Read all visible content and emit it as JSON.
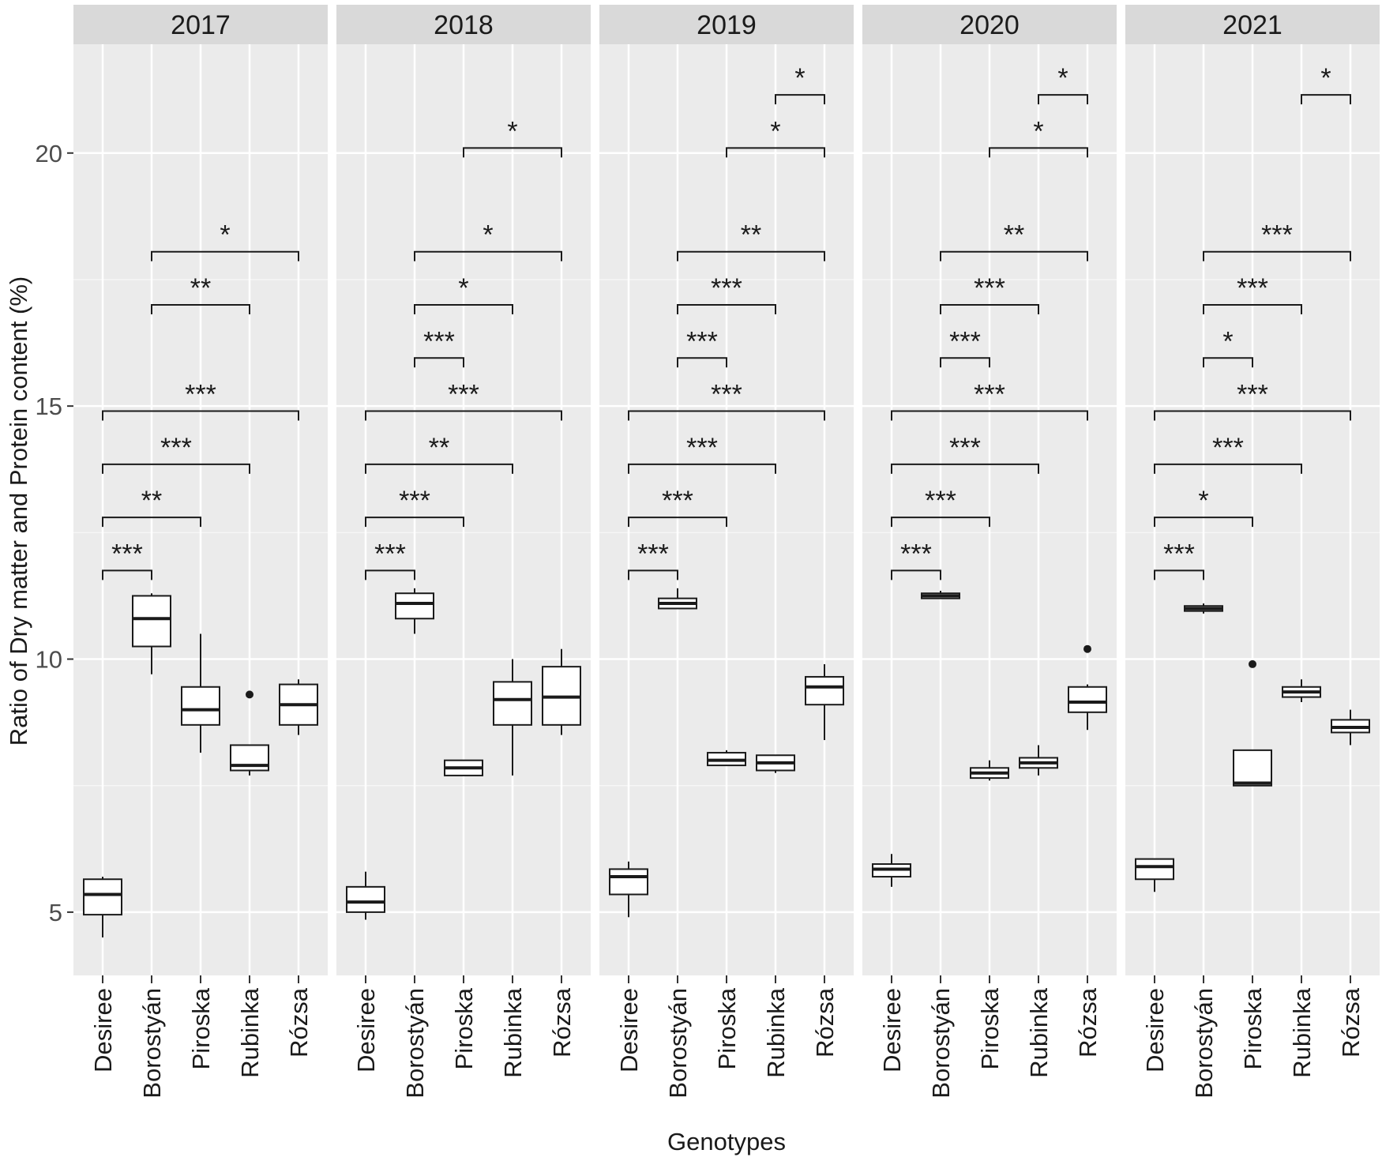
{
  "chart_data": {
    "type": "boxplot",
    "ylabel": "Ratio of Dry matter and Protein content (%)",
    "xlabel": "Genotypes",
    "ylim": [
      3.75,
      22.15
    ],
    "yticks": [
      5,
      10,
      15,
      20
    ],
    "categories": [
      "Desiree",
      "Borostyán",
      "Piroska",
      "Rubinka",
      "Rózsa"
    ],
    "panels": [
      {
        "title": "2017",
        "boxes": [
          {
            "category": "Desiree",
            "whisker_low": 4.5,
            "q1": 4.95,
            "median": 5.35,
            "q3": 5.65,
            "whisker_high": 5.7,
            "outliers": []
          },
          {
            "category": "Borostyán",
            "whisker_low": 9.7,
            "q1": 10.25,
            "median": 10.8,
            "q3": 11.25,
            "whisker_high": 11.3,
            "outliers": []
          },
          {
            "category": "Piroska",
            "whisker_low": 8.15,
            "q1": 8.7,
            "median": 9.0,
            "q3": 9.45,
            "whisker_high": 10.5,
            "outliers": []
          },
          {
            "category": "Rubinka",
            "whisker_low": 7.7,
            "q1": 7.8,
            "median": 7.9,
            "q3": 8.3,
            "whisker_high": 8.3,
            "outliers": [
              9.3
            ]
          },
          {
            "category": "Rózsa",
            "whisker_low": 8.5,
            "q1": 8.7,
            "median": 9.1,
            "q3": 9.5,
            "whisker_high": 9.6,
            "outliers": []
          }
        ],
        "comparisons": [
          {
            "from": 0,
            "to": 1,
            "y": 11.75,
            "label": "***"
          },
          {
            "from": 0,
            "to": 2,
            "y": 12.8,
            "label": "**"
          },
          {
            "from": 0,
            "to": 3,
            "y": 13.85,
            "label": "***"
          },
          {
            "from": 0,
            "to": 4,
            "y": 14.9,
            "label": "***"
          },
          {
            "from": 1,
            "to": 3,
            "y": 17.0,
            "label": "**"
          },
          {
            "from": 1,
            "to": 4,
            "y": 18.05,
            "label": "*"
          }
        ]
      },
      {
        "title": "2018",
        "boxes": [
          {
            "category": "Desiree",
            "whisker_low": 4.85,
            "q1": 5.0,
            "median": 5.2,
            "q3": 5.5,
            "whisker_high": 5.8,
            "outliers": []
          },
          {
            "category": "Borostyán",
            "whisker_low": 10.5,
            "q1": 10.8,
            "median": 11.1,
            "q3": 11.3,
            "whisker_high": 11.4,
            "outliers": []
          },
          {
            "category": "Piroska",
            "whisker_low": 7.7,
            "q1": 7.7,
            "median": 7.85,
            "q3": 8.0,
            "whisker_high": 8.0,
            "outliers": []
          },
          {
            "category": "Rubinka",
            "whisker_low": 7.7,
            "q1": 8.7,
            "median": 9.2,
            "q3": 9.55,
            "whisker_high": 10.0,
            "outliers": []
          },
          {
            "category": "Rózsa",
            "whisker_low": 8.5,
            "q1": 8.7,
            "median": 9.25,
            "q3": 9.85,
            "whisker_high": 10.2,
            "outliers": []
          }
        ],
        "comparisons": [
          {
            "from": 0,
            "to": 1,
            "y": 11.75,
            "label": "***"
          },
          {
            "from": 0,
            "to": 2,
            "y": 12.8,
            "label": "***"
          },
          {
            "from": 0,
            "to": 3,
            "y": 13.85,
            "label": "**"
          },
          {
            "from": 0,
            "to": 4,
            "y": 14.9,
            "label": "***"
          },
          {
            "from": 1,
            "to": 2,
            "y": 15.95,
            "label": "***"
          },
          {
            "from": 1,
            "to": 3,
            "y": 17.0,
            "label": "*"
          },
          {
            "from": 1,
            "to": 4,
            "y": 18.05,
            "label": "*"
          },
          {
            "from": 2,
            "to": 4,
            "y": 20.1,
            "label": "*"
          }
        ]
      },
      {
        "title": "2019",
        "boxes": [
          {
            "category": "Desiree",
            "whisker_low": 4.9,
            "q1": 5.35,
            "median": 5.7,
            "q3": 5.85,
            "whisker_high": 6.0,
            "outliers": []
          },
          {
            "category": "Borostyán",
            "whisker_low": 11.0,
            "q1": 11.0,
            "median": 11.1,
            "q3": 11.2,
            "whisker_high": 11.4,
            "outliers": []
          },
          {
            "category": "Piroska",
            "whisker_low": 7.9,
            "q1": 7.9,
            "median": 8.0,
            "q3": 8.15,
            "whisker_high": 8.2,
            "outliers": []
          },
          {
            "category": "Rubinka",
            "whisker_low": 7.75,
            "q1": 7.8,
            "median": 7.95,
            "q3": 8.1,
            "whisker_high": 8.1,
            "outliers": []
          },
          {
            "category": "Rózsa",
            "whisker_low": 8.4,
            "q1": 9.1,
            "median": 9.45,
            "q3": 9.65,
            "whisker_high": 9.9,
            "outliers": []
          }
        ],
        "comparisons": [
          {
            "from": 0,
            "to": 1,
            "y": 11.75,
            "label": "***"
          },
          {
            "from": 0,
            "to": 2,
            "y": 12.8,
            "label": "***"
          },
          {
            "from": 0,
            "to": 3,
            "y": 13.85,
            "label": "***"
          },
          {
            "from": 0,
            "to": 4,
            "y": 14.9,
            "label": "***"
          },
          {
            "from": 1,
            "to": 2,
            "y": 15.95,
            "label": "***"
          },
          {
            "from": 1,
            "to": 3,
            "y": 17.0,
            "label": "***"
          },
          {
            "from": 1,
            "to": 4,
            "y": 18.05,
            "label": "**"
          },
          {
            "from": 2,
            "to": 4,
            "y": 20.1,
            "label": "*"
          },
          {
            "from": 3,
            "to": 4,
            "y": 21.15,
            "label": "*"
          }
        ]
      },
      {
        "title": "2020",
        "boxes": [
          {
            "category": "Desiree",
            "whisker_low": 5.5,
            "q1": 5.7,
            "median": 5.85,
            "q3": 5.95,
            "whisker_high": 6.15,
            "outliers": []
          },
          {
            "category": "Borostyán",
            "whisker_low": 11.2,
            "q1": 11.2,
            "median": 11.25,
            "q3": 11.3,
            "whisker_high": 11.35,
            "outliers": []
          },
          {
            "category": "Piroska",
            "whisker_low": 7.6,
            "q1": 7.65,
            "median": 7.75,
            "q3": 7.85,
            "whisker_high": 8.0,
            "outliers": []
          },
          {
            "category": "Rubinka",
            "whisker_low": 7.7,
            "q1": 7.85,
            "median": 7.95,
            "q3": 8.05,
            "whisker_high": 8.3,
            "outliers": []
          },
          {
            "category": "Rózsa",
            "whisker_low": 8.6,
            "q1": 8.95,
            "median": 9.15,
            "q3": 9.45,
            "whisker_high": 9.5,
            "outliers": [
              10.2
            ]
          }
        ],
        "comparisons": [
          {
            "from": 0,
            "to": 1,
            "y": 11.75,
            "label": "***"
          },
          {
            "from": 0,
            "to": 2,
            "y": 12.8,
            "label": "***"
          },
          {
            "from": 0,
            "to": 3,
            "y": 13.85,
            "label": "***"
          },
          {
            "from": 0,
            "to": 4,
            "y": 14.9,
            "label": "***"
          },
          {
            "from": 1,
            "to": 2,
            "y": 15.95,
            "label": "***"
          },
          {
            "from": 1,
            "to": 3,
            "y": 17.0,
            "label": "***"
          },
          {
            "from": 1,
            "to": 4,
            "y": 18.05,
            "label": "**"
          },
          {
            "from": 2,
            "to": 4,
            "y": 20.1,
            "label": "*"
          },
          {
            "from": 3,
            "to": 4,
            "y": 21.15,
            "label": "*"
          }
        ]
      },
      {
        "title": "2021",
        "boxes": [
          {
            "category": "Desiree",
            "whisker_low": 5.4,
            "q1": 5.65,
            "median": 5.9,
            "q3": 6.05,
            "whisker_high": 6.05,
            "outliers": []
          },
          {
            "category": "Borostyán",
            "whisker_low": 10.9,
            "q1": 10.95,
            "median": 11.0,
            "q3": 11.05,
            "whisker_high": 11.1,
            "outliers": []
          },
          {
            "category": "Piroska",
            "whisker_low": 7.5,
            "q1": 7.5,
            "median": 7.55,
            "q3": 8.2,
            "whisker_high": 8.2,
            "outliers": [
              9.9
            ]
          },
          {
            "category": "Rubinka",
            "whisker_low": 9.15,
            "q1": 9.25,
            "median": 9.35,
            "q3": 9.45,
            "whisker_high": 9.6,
            "outliers": []
          },
          {
            "category": "Rózsa",
            "whisker_low": 8.3,
            "q1": 8.55,
            "median": 8.65,
            "q3": 8.8,
            "whisker_high": 9.0,
            "outliers": []
          }
        ],
        "comparisons": [
          {
            "from": 0,
            "to": 1,
            "y": 11.75,
            "label": "***"
          },
          {
            "from": 0,
            "to": 2,
            "y": 12.8,
            "label": "*"
          },
          {
            "from": 0,
            "to": 3,
            "y": 13.85,
            "label": "***"
          },
          {
            "from": 0,
            "to": 4,
            "y": 14.9,
            "label": "***"
          },
          {
            "from": 1,
            "to": 2,
            "y": 15.95,
            "label": "*"
          },
          {
            "from": 1,
            "to": 3,
            "y": 17.0,
            "label": "***"
          },
          {
            "from": 1,
            "to": 4,
            "y": 18.05,
            "label": "***"
          },
          {
            "from": 3,
            "to": 4,
            "y": 21.15,
            "label": "*"
          }
        ]
      }
    ]
  }
}
